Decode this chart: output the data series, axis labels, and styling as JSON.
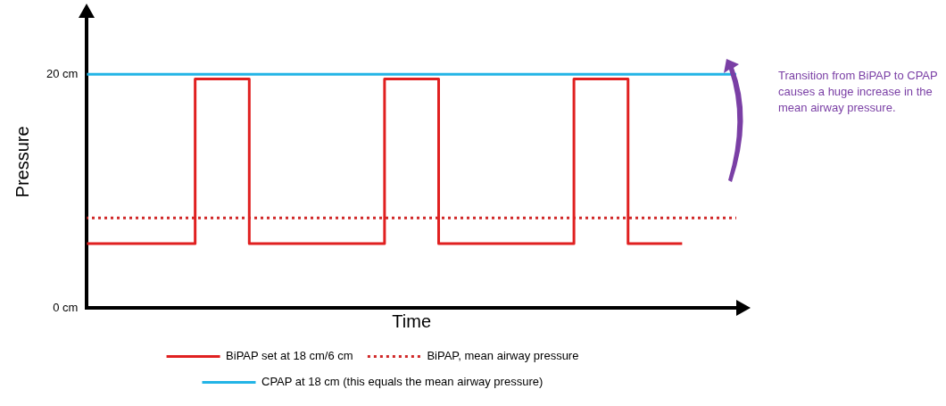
{
  "chart_data": {
    "type": "line",
    "xlabel": "Time",
    "ylabel": "Pressure",
    "categories": [
      null,
      null,
      null,
      null,
      null,
      null,
      null,
      null,
      null,
      null,
      null,
      null,
      null,
      null,
      null,
      null,
      null,
      null,
      null,
      null,
      null,
      null,
      null,
      null,
      null
    ],
    "series": [
      {
        "name": "BiPAP set at 18 cm/6 cm",
        "type": "step",
        "color": "#e02020",
        "line_style": "solid",
        "values": [
          5.5,
          5.5,
          5.5,
          5.5,
          5.5,
          19.6,
          19.6,
          5.5,
          5.5,
          5.5,
          5.5,
          5.5,
          19.6,
          19.6,
          5.5,
          5.5,
          5.5,
          5.5,
          5.5,
          19.6,
          19.6,
          5.5,
          5.5,
          null,
          null
        ]
      },
      {
        "name": "BiPAP, mean airway pressure",
        "type": "line",
        "color": "#d02828",
        "line_style": "dotted",
        "values": [
          7.7,
          7.7,
          7.7,
          7.7,
          7.7,
          7.7,
          7.7,
          7.7,
          7.7,
          7.7,
          7.7,
          7.7,
          7.7,
          7.7,
          7.7,
          7.7,
          7.7,
          7.7,
          7.7,
          7.7,
          7.7,
          7.7,
          7.7,
          7.7,
          7.7
        ]
      },
      {
        "name": "CPAP at 18 cm (this equals the mean airway pressure)",
        "type": "line",
        "color": "#22b4e6",
        "line_style": "solid",
        "values": [
          20,
          20,
          20,
          20,
          20,
          20,
          20,
          20,
          20,
          20,
          20,
          20,
          20,
          20,
          20,
          20,
          20,
          20,
          20,
          20,
          20,
          20,
          20,
          20,
          20
        ]
      }
    ],
    "ylim": [
      0,
      25
    ],
    "yticks": [
      {
        "value": 0,
        "label": "0 cm"
      },
      {
        "value": 20,
        "label": "20 cm"
      }
    ],
    "tick_labels": "y",
    "grid": false,
    "marker": "none",
    "legend": "bottom",
    "annotations": [
      "Transition from BiPAP to CPAP causes a huge increase in the mean airway pressure."
    ]
  }
}
